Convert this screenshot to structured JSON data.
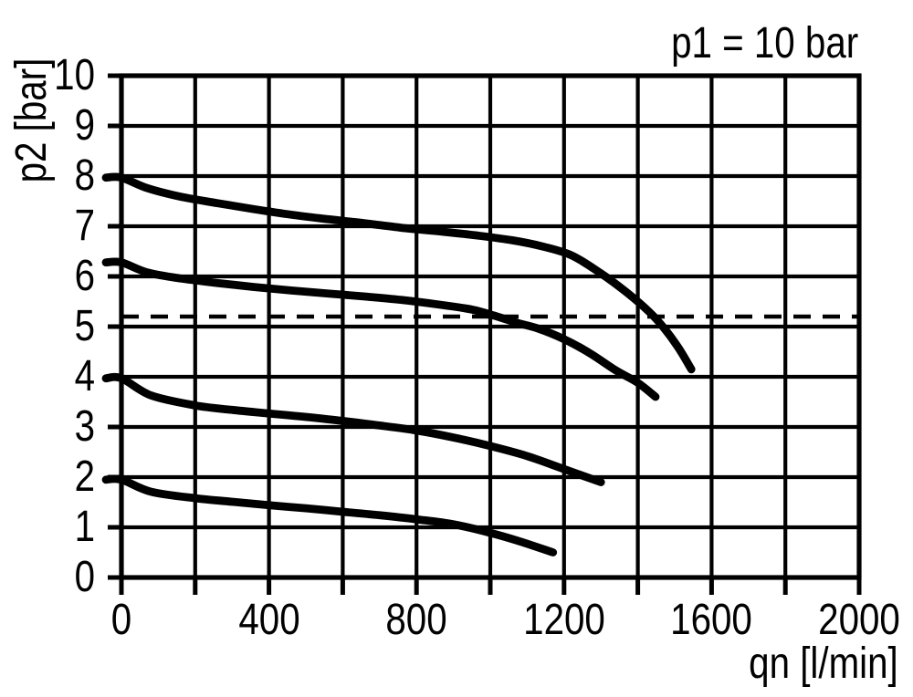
{
  "figure": {
    "background_color": "#ffffff",
    "foreground_color": "#000000"
  },
  "chart_data": {
    "type": "line",
    "title": "p1 = 10 bar",
    "xlabel": "qn [l/min]",
    "ylabel": "p2 [bar]",
    "xlim": [
      0,
      2000
    ],
    "ylim": [
      0,
      10
    ],
    "x_grid_step": 200,
    "y_grid_step": 1,
    "grid": "on",
    "legend": "none",
    "x_tick_labels": [
      "0",
      "400",
      "800",
      "1200",
      "1600",
      "2000"
    ],
    "y_tick_labels": [
      "0",
      "1",
      "2",
      "3",
      "4",
      "5",
      "6",
      "7",
      "8",
      "9",
      "10"
    ],
    "reference_line": {
      "style": "dashed",
      "orientation": "horizontal",
      "value": 5.2
    },
    "series": [
      {
        "name": "curve-1-start-8.0-bar",
        "points": [
          [
            0,
            7.97
          ],
          [
            70,
            7.76
          ],
          [
            160,
            7.59
          ],
          [
            260,
            7.46
          ],
          [
            360,
            7.34
          ],
          [
            460,
            7.23
          ],
          [
            560,
            7.14
          ],
          [
            660,
            7.06
          ],
          [
            760,
            6.97
          ],
          [
            860,
            6.9
          ],
          [
            960,
            6.82
          ],
          [
            1060,
            6.72
          ],
          [
            1140,
            6.6
          ],
          [
            1220,
            6.42
          ],
          [
            1300,
            6.06
          ],
          [
            1370,
            5.68
          ],
          [
            1430,
            5.3
          ],
          [
            1470,
            4.98
          ],
          [
            1510,
            4.58
          ],
          [
            1545,
            4.15
          ]
        ]
      },
      {
        "name": "curve-2-start-6.3-bar",
        "points": [
          [
            0,
            6.28
          ],
          [
            70,
            6.08
          ],
          [
            160,
            5.96
          ],
          [
            260,
            5.87
          ],
          [
            360,
            5.79
          ],
          [
            460,
            5.72
          ],
          [
            560,
            5.66
          ],
          [
            660,
            5.6
          ],
          [
            760,
            5.53
          ],
          [
            860,
            5.44
          ],
          [
            950,
            5.34
          ],
          [
            1010,
            5.22
          ],
          [
            1070,
            5.08
          ],
          [
            1130,
            4.96
          ],
          [
            1200,
            4.75
          ],
          [
            1270,
            4.47
          ],
          [
            1340,
            4.13
          ],
          [
            1400,
            3.88
          ],
          [
            1448,
            3.6
          ]
        ]
      },
      {
        "name": "curve-3-start-4.0-bar",
        "points": [
          [
            0,
            3.97
          ],
          [
            80,
            3.63
          ],
          [
            200,
            3.43
          ],
          [
            300,
            3.34
          ],
          [
            400,
            3.27
          ],
          [
            500,
            3.2
          ],
          [
            600,
            3.12
          ],
          [
            700,
            3.03
          ],
          [
            800,
            2.93
          ],
          [
            900,
            2.79
          ],
          [
            1000,
            2.62
          ],
          [
            1100,
            2.42
          ],
          [
            1200,
            2.16
          ],
          [
            1300,
            1.9
          ]
        ]
      },
      {
        "name": "curve-4-start-2.0-bar",
        "points": [
          [
            0,
            1.95
          ],
          [
            80,
            1.71
          ],
          [
            200,
            1.58
          ],
          [
            300,
            1.51
          ],
          [
            400,
            1.44
          ],
          [
            500,
            1.38
          ],
          [
            600,
            1.31
          ],
          [
            700,
            1.24
          ],
          [
            800,
            1.16
          ],
          [
            900,
            1.06
          ],
          [
            1000,
            0.89
          ],
          [
            1080,
            0.72
          ],
          [
            1170,
            0.5
          ]
        ]
      }
    ]
  }
}
